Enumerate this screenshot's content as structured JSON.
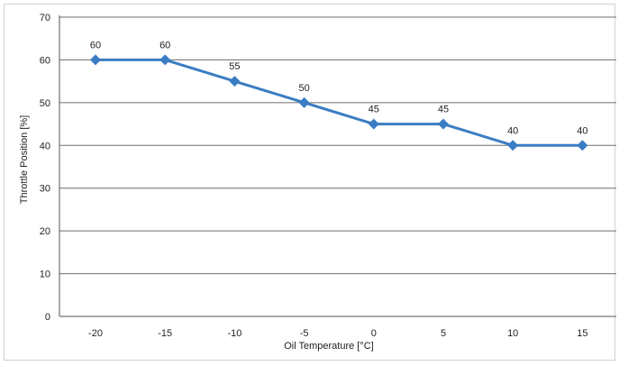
{
  "chart_data": {
    "type": "line",
    "title": "",
    "xlabel": "Oil Temperature [°C]",
    "ylabel": "Throttle Position [%]",
    "categories": [
      "-20",
      "-15",
      "-10",
      "-5",
      "0",
      "5",
      "10",
      "15"
    ],
    "series": [
      {
        "values": [
          60,
          60,
          55,
          50,
          45,
          45,
          40,
          40
        ],
        "color": "#3b7dc4",
        "marker": "diamond"
      }
    ],
    "ylim": [
      0,
      70
    ],
    "yticks": [
      0,
      10,
      20,
      30,
      40,
      50,
      60,
      70
    ],
    "grid": true,
    "legend": "none",
    "data_labels": true
  }
}
